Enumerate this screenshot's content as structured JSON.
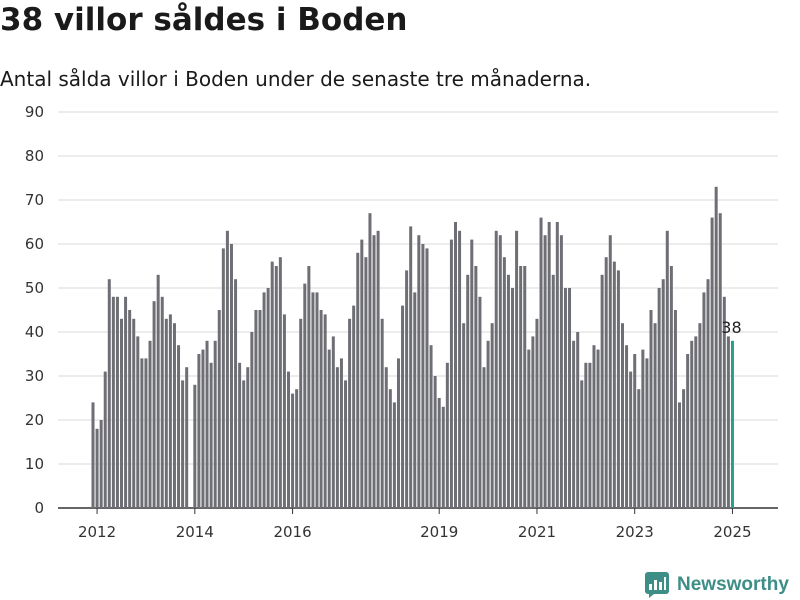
{
  "chart_data": {
    "type": "bar",
    "title": "38 villor såldes i Boden",
    "subtitle": "Antal sålda villor i Boden under de senaste tre månaderna.",
    "ylim": [
      0,
      90
    ],
    "yticks": [
      0,
      10,
      20,
      30,
      40,
      50,
      60,
      70,
      80,
      90
    ],
    "xticks": [
      "2012",
      "2014",
      "2016",
      "2019",
      "2021",
      "2023",
      "2025"
    ],
    "grid": true,
    "bar_color": "#6e6e75",
    "highlight_color": "#2a9d8f",
    "x": [
      "2011-12",
      "2012-01",
      "2012-02",
      "2012-03",
      "2012-04",
      "2012-05",
      "2012-06",
      "2012-07",
      "2012-08",
      "2012-09",
      "2012-10",
      "2012-11",
      "2012-12",
      "2013-01",
      "2013-02",
      "2013-03",
      "2013-04",
      "2013-05",
      "2013-06",
      "2013-07",
      "2013-08",
      "2013-09",
      "2013-10",
      "2013-11",
      "2013-12",
      "2014-01",
      "2014-02",
      "2014-03",
      "2014-04",
      "2014-05",
      "2014-06",
      "2014-07",
      "2014-08",
      "2014-09",
      "2014-10",
      "2014-11",
      "2014-12",
      "2015-01",
      "2015-02",
      "2015-03",
      "2015-04",
      "2015-05",
      "2015-06",
      "2015-07",
      "2015-08",
      "2015-09",
      "2015-10",
      "2015-11",
      "2015-12",
      "2016-01",
      "2016-02",
      "2016-03",
      "2016-04",
      "2016-05",
      "2016-06",
      "2016-07",
      "2016-08",
      "2016-09",
      "2016-10",
      "2016-11",
      "2016-12",
      "2017-01",
      "2017-02",
      "2017-03",
      "2017-04",
      "2017-05",
      "2017-06",
      "2017-07",
      "2017-08",
      "2017-09",
      "2017-10",
      "2017-11",
      "2017-12",
      "2018-01",
      "2018-02",
      "2018-03",
      "2018-04",
      "2018-05",
      "2018-06",
      "2018-07",
      "2018-08",
      "2018-09",
      "2018-10",
      "2018-11",
      "2018-12",
      "2019-01",
      "2019-02",
      "2019-03",
      "2019-04",
      "2019-05",
      "2019-06",
      "2019-07",
      "2019-08",
      "2019-09",
      "2019-10",
      "2019-11",
      "2019-12",
      "2020-01",
      "2020-02",
      "2020-03",
      "2020-04",
      "2020-05",
      "2020-06",
      "2020-07",
      "2020-08",
      "2020-09",
      "2020-10",
      "2020-11",
      "2020-12",
      "2021-01",
      "2021-02",
      "2021-03",
      "2021-04",
      "2021-05",
      "2021-06",
      "2021-07",
      "2021-08",
      "2021-09",
      "2021-10",
      "2021-11",
      "2021-12",
      "2022-01",
      "2022-02",
      "2022-03",
      "2022-04",
      "2022-05",
      "2022-06",
      "2022-07",
      "2022-08",
      "2022-09",
      "2022-10",
      "2022-11",
      "2022-12",
      "2023-01",
      "2023-02",
      "2023-03",
      "2023-04",
      "2023-05",
      "2023-06",
      "2023-07",
      "2023-08",
      "2023-09",
      "2023-10",
      "2023-11",
      "2023-12",
      "2024-01",
      "2024-02",
      "2024-03",
      "2024-04",
      "2024-05",
      "2024-06",
      "2024-07",
      "2024-08",
      "2024-09",
      "2024-10",
      "2024-11",
      "2024-12",
      "2025-01"
    ],
    "values": [
      24,
      18,
      20,
      31,
      52,
      48,
      48,
      43,
      48,
      45,
      43,
      39,
      34,
      34,
      38,
      47,
      53,
      48,
      43,
      44,
      42,
      37,
      29,
      32,
      0,
      28,
      35,
      36,
      38,
      33,
      38,
      45,
      59,
      63,
      60,
      52,
      33,
      29,
      32,
      40,
      45,
      45,
      49,
      50,
      56,
      55,
      57,
      44,
      31,
      26,
      27,
      43,
      51,
      55,
      49,
      49,
      45,
      44,
      36,
      39,
      32,
      34,
      29,
      43,
      46,
      58,
      61,
      57,
      67,
      62,
      63,
      43,
      32,
      27,
      24,
      34,
      46,
      54,
      64,
      49,
      62,
      60,
      59,
      37,
      30,
      25,
      23,
      33,
      61,
      65,
      63,
      42,
      53,
      61,
      55,
      48,
      32,
      38,
      42,
      63,
      62,
      57,
      53,
      50,
      63,
      55,
      55,
      36,
      39,
      43,
      66,
      62,
      65,
      53,
      65,
      62,
      50,
      50,
      38,
      40,
      29,
      33,
      33,
      37,
      36,
      53,
      57,
      62,
      56,
      54,
      42,
      37,
      31,
      35,
      27,
      36,
      34,
      45,
      42,
      50,
      52,
      63,
      55,
      45,
      24,
      27,
      35,
      38,
      39,
      42,
      49,
      52,
      66,
      73,
      67,
      48,
      39,
      38
    ],
    "value_labels": [
      {
        "x": "2025-01",
        "text": "38"
      }
    ],
    "tick_dates": [
      "2012-01",
      "2014-01",
      "2016-01",
      "2019-01",
      "2021-01",
      "2023-01",
      "2025-01"
    ]
  },
  "brand": {
    "name": "Newsworthy",
    "color": "#3d8e86"
  }
}
